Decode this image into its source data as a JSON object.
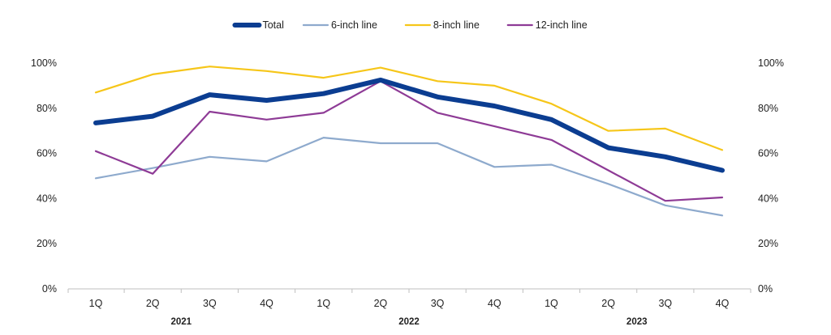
{
  "chart_data": {
    "type": "line",
    "title": "",
    "xlabel": "",
    "ylabel": "",
    "x": [
      "1Q",
      "2Q",
      "3Q",
      "4Q",
      "1Q",
      "2Q",
      "3Q",
      "4Q",
      "1Q",
      "2Q",
      "3Q",
      "4Q"
    ],
    "groups": [
      {
        "label": "2021",
        "start": 0,
        "end": 3
      },
      {
        "label": "2022",
        "start": 4,
        "end": 7
      },
      {
        "label": "2023",
        "start": 8,
        "end": 11
      }
    ],
    "ylim": [
      0,
      100
    ],
    "yticks": [
      0,
      20,
      40,
      60,
      80,
      100
    ],
    "ytick_labels": [
      "0%",
      "20%",
      "40%",
      "60%",
      "80%",
      "100%"
    ],
    "secondary_axis": true,
    "grid": false,
    "legend_position": "top-center",
    "series": [
      {
        "name": "Total",
        "color": "#0b3d91",
        "weight": "heavy",
        "values": [
          73.5,
          76.5,
          86,
          83.5,
          86.5,
          92.5,
          85,
          81,
          75,
          62.5,
          58.5,
          52.5
        ]
      },
      {
        "name": "6-inch line",
        "color": "#8eaacd",
        "weight": "normal",
        "values": [
          49,
          53.5,
          58.5,
          56.5,
          67,
          64.5,
          64.5,
          54,
          55,
          46.5,
          37,
          32.5
        ]
      },
      {
        "name": "8-inch line",
        "color": "#f6c619",
        "weight": "normal",
        "values": [
          87,
          95,
          98.5,
          96.5,
          93.5,
          98,
          92,
          90,
          82,
          70,
          71,
          61.5
        ]
      },
      {
        "name": "12-inch line",
        "color": "#8e3b96",
        "weight": "normal",
        "values": [
          61,
          51,
          78.5,
          75,
          78,
          92,
          78,
          72,
          66,
          52.5,
          39,
          40.5
        ]
      }
    ]
  }
}
